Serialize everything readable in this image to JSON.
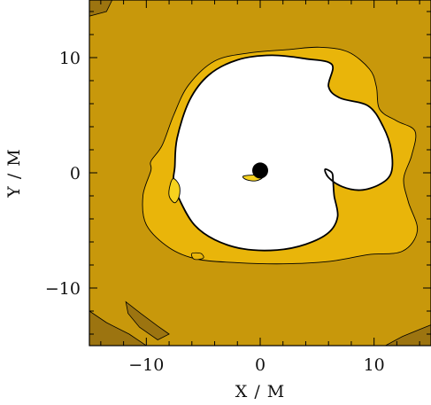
{
  "chart_data": {
    "type": "contour",
    "xlabel": "X / M",
    "ylabel": "Y / M",
    "xlim": [
      -15,
      15
    ],
    "ylim": [
      -15,
      15
    ],
    "x_ticks": [
      -10,
      0,
      10
    ],
    "y_ticks": [
      -10,
      0,
      10
    ],
    "x_tick_labels": [
      "−10",
      "0",
      "10"
    ],
    "y_tick_labels": [
      "−10",
      "0",
      "10"
    ],
    "grid": false,
    "levels": [
      {
        "name": "background",
        "color": "#c8980b"
      },
      {
        "name": "outer-band",
        "color": "#e9b50a"
      },
      {
        "name": "inner-region",
        "color": "#ffffff"
      },
      {
        "name": "dark-patches",
        "color": "#9c7410"
      }
    ],
    "black_hole": {
      "x": 0,
      "y": 0.2,
      "radius": 0.7,
      "color": "#000000"
    },
    "contours": {
      "inner_white": [
        [
          -7.5,
          0.5
        ],
        [
          -7.3,
          3.0
        ],
        [
          -6.2,
          6.3
        ],
        [
          -4.5,
          8.5
        ],
        [
          -2.0,
          9.8
        ],
        [
          1.0,
          10.2
        ],
        [
          4.0,
          9.9
        ],
        [
          6.3,
          9.4
        ],
        [
          6.0,
          7.5
        ],
        [
          7.0,
          6.5
        ],
        [
          9.5,
          5.8
        ],
        [
          10.8,
          4.0
        ],
        [
          11.5,
          2.0
        ],
        [
          11.5,
          0.0
        ],
        [
          10.5,
          -1.0
        ],
        [
          8.8,
          -1.5
        ],
        [
          7.2,
          -1.2
        ],
        [
          6.0,
          -0.4
        ],
        [
          5.7,
          0.3
        ],
        [
          6.3,
          0.0
        ],
        [
          6.4,
          -0.7
        ],
        [
          6.5,
          -2.0
        ],
        [
          6.8,
          -3.8
        ],
        [
          6.0,
          -5.2
        ],
        [
          4.0,
          -6.2
        ],
        [
          1.5,
          -6.7
        ],
        [
          -1.5,
          -6.6
        ],
        [
          -4.0,
          -5.8
        ],
        [
          -5.8,
          -4.5
        ],
        [
          -7.0,
          -2.5
        ],
        [
          -7.6,
          -0.8
        ]
      ],
      "outer_yellow": [
        [
          -9.6,
          0.2
        ],
        [
          -10.3,
          -2.0
        ],
        [
          -10.0,
          -4.5
        ],
        [
          -8.0,
          -6.5
        ],
        [
          -5.5,
          -7.5
        ],
        [
          -2.0,
          -7.8
        ],
        [
          2.0,
          -7.9
        ],
        [
          6.0,
          -7.7
        ],
        [
          9.5,
          -7.1
        ],
        [
          12.5,
          -6.8
        ],
        [
          13.8,
          -5.0
        ],
        [
          13.0,
          -2.5
        ],
        [
          12.6,
          -0.5
        ],
        [
          13.3,
          1.5
        ],
        [
          13.6,
          3.6
        ],
        [
          12.0,
          4.5
        ],
        [
          10.5,
          5.5
        ],
        [
          10.2,
          7.5
        ],
        [
          9.6,
          9.0
        ],
        [
          7.7,
          10.5
        ],
        [
          5.2,
          10.9
        ],
        [
          2.5,
          10.7
        ],
        [
          -1.0,
          10.4
        ],
        [
          -4.0,
          9.7
        ],
        [
          -6.3,
          7.6
        ],
        [
          -7.6,
          5.0
        ],
        [
          -8.6,
          2.4
        ],
        [
          -9.6,
          1.0
        ]
      ],
      "left_blob": [
        [
          -7.6,
          -0.5
        ],
        [
          -7.1,
          -1.1
        ],
        [
          -7.1,
          -2.0
        ],
        [
          -7.5,
          -2.6
        ],
        [
          -8.0,
          -2.0
        ],
        [
          -7.9,
          -1.0
        ]
      ],
      "center_sliver": [
        [
          -1.5,
          -0.3
        ],
        [
          -0.5,
          -0.2
        ],
        [
          0.2,
          -0.4
        ],
        [
          -0.4,
          -0.7
        ],
        [
          -1.2,
          -0.6
        ]
      ],
      "top_left_patch": [
        [
          -15,
          15
        ],
        [
          -13.0,
          15
        ],
        [
          -13.5,
          14.0
        ],
        [
          -15,
          13.6
        ]
      ],
      "bottom_left_patch": [
        [
          -15,
          -12.0
        ],
        [
          -13.5,
          -13.0
        ],
        [
          -11.5,
          -14.0
        ],
        [
          -10.0,
          -15
        ],
        [
          -15,
          -15
        ]
      ],
      "bottom_patch_2": [
        [
          -11.8,
          -11.2
        ],
        [
          -10.5,
          -12.2
        ],
        [
          -9.0,
          -13.3
        ],
        [
          -8.0,
          -14.0
        ],
        [
          -9.0,
          -14.5
        ],
        [
          -10.6,
          -13.4
        ],
        [
          -11.6,
          -12.2
        ]
      ],
      "bottom_right_patch": [
        [
          11.0,
          -15
        ],
        [
          12.5,
          -14.2
        ],
        [
          14.0,
          -13.6
        ],
        [
          15,
          -13.2
        ],
        [
          15,
          -15
        ]
      ],
      "small_oval": [
        [
          -6.0,
          -7.0
        ],
        [
          -5.2,
          -7.0
        ],
        [
          -5.0,
          -7.4
        ],
        [
          -5.8,
          -7.5
        ]
      ]
    }
  }
}
